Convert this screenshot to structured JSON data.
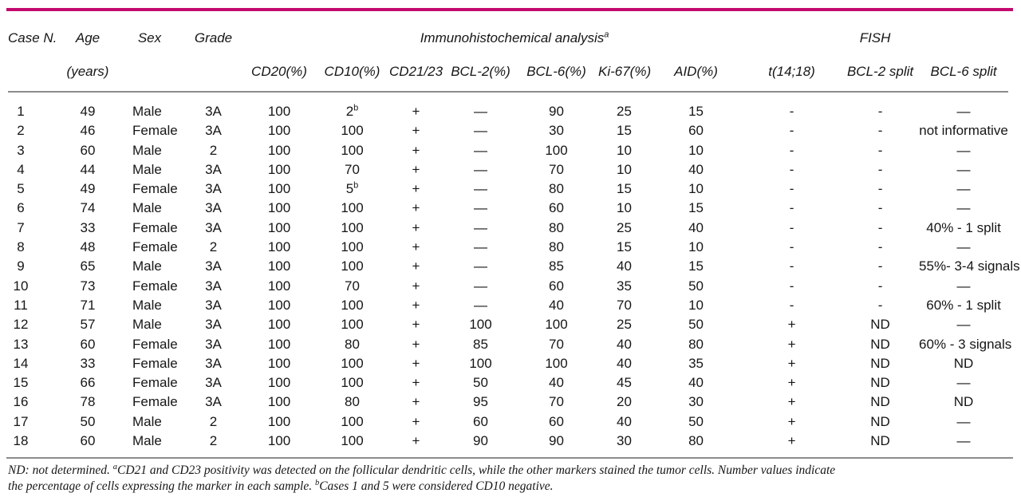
{
  "table": {
    "accent_rule_color": "#c40a6e",
    "inner_rule_color": "#8c8c8c",
    "group_headers": {
      "ihc": "Immunohistochemical analysis",
      "ihc_sup": "a",
      "fish": "FISH"
    },
    "columns": [
      {
        "id": "case",
        "line1": "Case N.",
        "line2": ""
      },
      {
        "id": "age",
        "line1": "Age",
        "line2": "(years)"
      },
      {
        "id": "sex",
        "line1": "Sex",
        "line2": ""
      },
      {
        "id": "grade",
        "line1": "Grade",
        "line2": ""
      },
      {
        "id": "cd20",
        "line1": "",
        "line2": "CD20(%)"
      },
      {
        "id": "cd10",
        "line1": "",
        "line2": "CD10(%)"
      },
      {
        "id": "cd21-23",
        "line1": "",
        "line2": "CD21/23"
      },
      {
        "id": "bcl2",
        "line1": "",
        "line2": "BCL-2(%)"
      },
      {
        "id": "bcl6",
        "line1": "",
        "line2": "BCL-6(%)"
      },
      {
        "id": "ki67",
        "line1": "",
        "line2": "Ki-67(%)"
      },
      {
        "id": "aid",
        "line1": "",
        "line2": "AID(%)"
      },
      {
        "id": "t14-18",
        "line1": "",
        "line2": "t(14;18)"
      },
      {
        "id": "bcl2-split",
        "line1": "",
        "line2": "BCL-2 split"
      },
      {
        "id": "bcl6-split",
        "line1": "",
        "line2": "BCL-6 split"
      }
    ],
    "rows": [
      [
        "1",
        "49",
        "Male",
        "3A",
        "100",
        "2^b",
        "+",
        "—",
        "90",
        "25",
        "15",
        "-",
        "-",
        "—"
      ],
      [
        "2",
        "46",
        "Female",
        "3A",
        "100",
        "100",
        "+",
        "—",
        "30",
        "15",
        "60",
        "-",
        "-",
        "not informative"
      ],
      [
        "3",
        "60",
        "Male",
        "2",
        "100",
        "100",
        "+",
        "—",
        "100",
        "10",
        "10",
        "-",
        "-",
        "—"
      ],
      [
        "4",
        "44",
        "Male",
        "3A",
        "100",
        "70",
        "+",
        "—",
        "70",
        "10",
        "40",
        "-",
        "-",
        "—"
      ],
      [
        "5",
        "49",
        "Female",
        "3A",
        "100",
        "5^b",
        "+",
        "—",
        "80",
        "15",
        "10",
        "-",
        "-",
        "—"
      ],
      [
        "6",
        "74",
        "Male",
        "3A",
        "100",
        "100",
        "+",
        "—",
        "60",
        "10",
        "15",
        "-",
        "-",
        "—"
      ],
      [
        "7",
        "33",
        "Female",
        "3A",
        "100",
        "100",
        "+",
        "—",
        "80",
        "25",
        "40",
        "-",
        "-",
        "40% - 1 split"
      ],
      [
        "8",
        "48",
        "Female",
        "2",
        "100",
        "100",
        "+",
        "—",
        "80",
        "15",
        "10",
        "-",
        "-",
        "—"
      ],
      [
        "9",
        "65",
        "Male",
        "3A",
        "100",
        "100",
        "+",
        "—",
        "85",
        "40",
        "15",
        "-",
        "-",
        "55%- 3-4 signals"
      ],
      [
        "10",
        "73",
        "Female",
        "3A",
        "100",
        "70",
        "+",
        "—",
        "60",
        "35",
        "50",
        "-",
        "-",
        "—"
      ],
      [
        "11",
        "71",
        "Male",
        "3A",
        "100",
        "100",
        "+",
        "—",
        "40",
        "70",
        "10",
        "-",
        "-",
        "60% - 1 split"
      ],
      [
        "12",
        "57",
        "Male",
        "3A",
        "100",
        "100",
        "+",
        "100",
        "100",
        "25",
        "50",
        "+",
        "ND",
        "—"
      ],
      [
        "13",
        "60",
        "Female",
        "3A",
        "100",
        "80",
        "+",
        "85",
        "70",
        "40",
        "80",
        "+",
        "ND",
        "60% - 3 signals"
      ],
      [
        "14",
        "33",
        "Female",
        "3A",
        "100",
        "100",
        "+",
        "100",
        "100",
        "40",
        "35",
        "+",
        "ND",
        "ND"
      ],
      [
        "15",
        "66",
        "Female",
        "3A",
        "100",
        "100",
        "+",
        "50",
        "40",
        "45",
        "40",
        "+",
        "ND",
        "—"
      ],
      [
        "16",
        "78",
        "Female",
        "3A",
        "100",
        "80",
        "+",
        "95",
        "70",
        "20",
        "30",
        "+",
        "ND",
        "ND"
      ],
      [
        "17",
        "50",
        "Male",
        "2",
        "100",
        "100",
        "+",
        "60",
        "60",
        "40",
        "50",
        "+",
        "ND",
        "—"
      ],
      [
        "18",
        "60",
        "Male",
        "2",
        "100",
        "100",
        "+",
        "90",
        "90",
        "30",
        "80",
        "+",
        "ND",
        "—"
      ]
    ]
  },
  "footnote": {
    "line1": "ND: not determined. ^aCD21 and CD23 positivity was detected on the follicular dendritic cells, while the other markers stained the tumor cells. Number values indicate",
    "line2": "the percentage of cells expressing the marker in each sample. ^bCases 1 and 5 were considered CD10 negative."
  }
}
